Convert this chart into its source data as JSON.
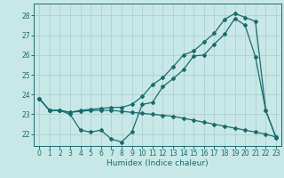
{
  "xlabel": "Humidex (Indice chaleur)",
  "bg_color": "#c8e8e8",
  "grid_color": "#aacccc",
  "line_color": "#1a6b6b",
  "xlim": [
    -0.5,
    23.5
  ],
  "ylim": [
    21.4,
    28.6
  ],
  "xticks": [
    0,
    1,
    2,
    3,
    4,
    5,
    6,
    7,
    8,
    9,
    10,
    11,
    12,
    13,
    14,
    15,
    16,
    17,
    18,
    19,
    20,
    21,
    22,
    23
  ],
  "yticks": [
    22,
    23,
    24,
    25,
    26,
    27,
    28
  ],
  "line1_x": [
    0,
    1,
    2,
    3,
    4,
    5,
    6,
    7,
    8,
    9,
    10,
    11,
    12,
    13,
    14,
    15,
    16,
    17,
    18,
    19,
    20,
    21,
    22,
    23
  ],
  "line1_y": [
    23.8,
    23.2,
    23.2,
    23.0,
    22.2,
    22.1,
    22.2,
    21.75,
    21.6,
    22.1,
    23.5,
    23.6,
    24.4,
    24.8,
    25.25,
    25.95,
    26.0,
    26.55,
    27.05,
    27.85,
    27.5,
    25.9,
    23.2,
    21.8
  ],
  "line2_x": [
    0,
    1,
    2,
    3,
    4,
    5,
    6,
    7,
    8,
    9,
    10,
    11,
    12,
    13,
    14,
    15,
    16,
    17,
    18,
    19,
    20,
    21,
    22,
    23
  ],
  "line2_y": [
    23.8,
    23.2,
    23.2,
    23.1,
    23.15,
    23.2,
    23.2,
    23.2,
    23.15,
    23.1,
    23.05,
    23.0,
    22.95,
    22.9,
    22.8,
    22.7,
    22.6,
    22.5,
    22.4,
    22.3,
    22.2,
    22.1,
    22.0,
    21.85
  ],
  "line3_x": [
    0,
    1,
    2,
    3,
    4,
    5,
    6,
    7,
    8,
    9,
    10,
    11,
    12,
    13,
    14,
    15,
    16,
    17,
    18,
    19,
    20,
    21,
    22,
    23
  ],
  "line3_y": [
    23.8,
    23.2,
    23.2,
    23.1,
    23.2,
    23.25,
    23.3,
    23.35,
    23.35,
    23.5,
    23.9,
    24.5,
    24.85,
    25.4,
    26.0,
    26.2,
    26.65,
    27.1,
    27.8,
    28.1,
    27.9,
    27.7,
    23.2,
    21.85
  ]
}
